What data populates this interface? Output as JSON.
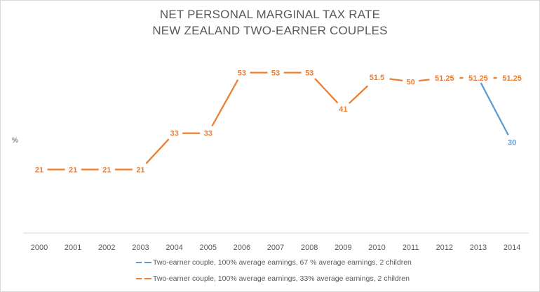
{
  "chart_data": {
    "type": "line",
    "title": "NET PERSONAL MARGINAL TAX RATE",
    "subtitle": "NEW ZEALAND TWO-EARNER COUPLES",
    "xlabel": "",
    "ylabel": "%",
    "ylim": [
      0,
      60
    ],
    "grid": false,
    "legend_position": "bottom",
    "categories": [
      "2000",
      "2001",
      "2002",
      "2003",
      "2004",
      "2005",
      "2006",
      "2007",
      "2008",
      "2009",
      "2010",
      "2011",
      "2012",
      "2013",
      "2014"
    ],
    "series": [
      {
        "name": "Two-earner couple, 100% average earnings, 67 % average earnings, 2 children",
        "color": "#5b9bd5",
        "values": [
          null,
          null,
          null,
          null,
          null,
          null,
          null,
          null,
          null,
          null,
          null,
          null,
          null,
          51.25,
          30
        ],
        "labels": [
          null,
          null,
          null,
          null,
          null,
          null,
          null,
          null,
          null,
          null,
          null,
          null,
          null,
          null,
          "30"
        ]
      },
      {
        "name": "Two-earner couple, 100% average earnings, 33% average earnings, 2 children",
        "color": "#ed7d31",
        "values": [
          21,
          21,
          21,
          21,
          33,
          33,
          53,
          53,
          53,
          41,
          51.5,
          50,
          51.25,
          51.25,
          51.25
        ],
        "labels": [
          "21",
          "21",
          "21",
          "21",
          "33",
          "33",
          "53",
          "53",
          "53",
          "41",
          "51.5",
          "50",
          "51.25",
          "51.25",
          "51.25"
        ]
      }
    ]
  }
}
